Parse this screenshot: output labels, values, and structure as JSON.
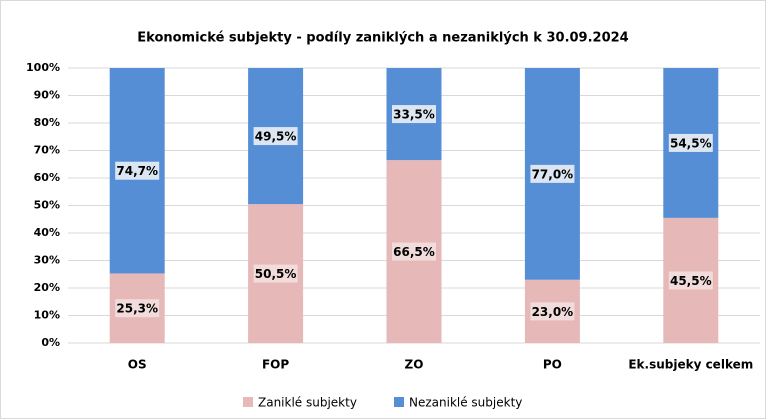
{
  "chart_data": {
    "type": "stacked_bar",
    "title": "Ekonomické subjekty - podíly zaniklých a nezaniklých k 30.09.2024",
    "categories": [
      "OS",
      "FOP",
      "ZO",
      "PO",
      "Ek.subjeky celkem"
    ],
    "series": [
      {
        "name": "Zaniklé subjekty",
        "color": "#e6b8b7",
        "values": [
          25.3,
          50.5,
          66.5,
          23.0,
          45.5
        ],
        "value_labels": [
          "25,3%",
          "50,5%",
          "66,5%",
          "23,0%",
          "45,5%"
        ]
      },
      {
        "name": "Nezaniklé subjekty",
        "color": "#558ed5",
        "values": [
          74.7,
          49.5,
          33.5,
          77.0,
          54.5
        ],
        "value_labels": [
          "74,7%",
          "49,5%",
          "33,5%",
          "77,0%",
          "54,5%"
        ]
      }
    ],
    "ylim": [
      0,
      100
    ],
    "yticks": [
      {
        "value": 0,
        "label": "0%"
      },
      {
        "value": 10,
        "label": "10%"
      },
      {
        "value": 20,
        "label": "20%"
      },
      {
        "value": 30,
        "label": "30%"
      },
      {
        "value": 40,
        "label": "40%"
      },
      {
        "value": 50,
        "label": "50%"
      },
      {
        "value": 60,
        "label": "60%"
      },
      {
        "value": 70,
        "label": "70%"
      },
      {
        "value": 80,
        "label": "80%"
      },
      {
        "value": 90,
        "label": "90%"
      },
      {
        "value": 100,
        "label": "100%"
      }
    ],
    "grid": true,
    "legend": "bottom"
  }
}
